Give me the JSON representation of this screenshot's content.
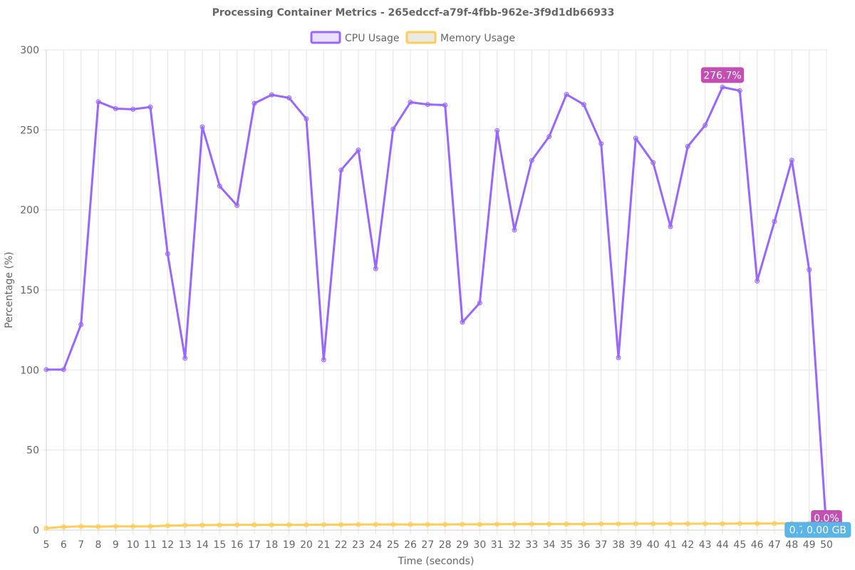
{
  "chart_data": {
    "type": "line",
    "title": "Processing Container Metrics - 265edccf-a79f-4fbb-962e-3f9d1db66933",
    "xlabel": "Time (seconds)",
    "ylabel": "Percentage (%)",
    "ylim": [
      0,
      300
    ],
    "y_ticks": [
      0,
      50,
      100,
      150,
      200,
      250,
      300
    ],
    "x": [
      5,
      6,
      7,
      8,
      9,
      10,
      11,
      12,
      13,
      14,
      15,
      16,
      17,
      18,
      19,
      20,
      21,
      22,
      23,
      24,
      25,
      26,
      27,
      28,
      29,
      30,
      31,
      32,
      33,
      34,
      35,
      36,
      37,
      38,
      39,
      40,
      41,
      42,
      43,
      44,
      45,
      46,
      47,
      48,
      49,
      50
    ],
    "grid": true,
    "legend_position": "top",
    "series": [
      {
        "name": "CPU Usage",
        "color": "#9966ff",
        "values": [
          100.3,
          100.3,
          128.4,
          267.6,
          263.3,
          262.9,
          264.3,
          172.6,
          107.4,
          251.9,
          214.9,
          202.8,
          266.6,
          271.9,
          270.0,
          256.9,
          106.4,
          224.9,
          237.4,
          163.3,
          250.4,
          267.3,
          265.9,
          265.5,
          129.9,
          141.9,
          249.6,
          187.5,
          230.9,
          245.8,
          272.2,
          265.9,
          241.4,
          107.7,
          244.8,
          229.6,
          189.6,
          239.7,
          252.9,
          276.7,
          274.5,
          155.6,
          192.8,
          231.0,
          162.7,
          0.0
        ]
      },
      {
        "name": "Memory Usage",
        "color": "#ffcd56",
        "values": [
          1.2,
          2.0,
          2.3,
          2.2,
          2.3,
          2.3,
          2.3,
          2.8,
          3.0,
          3.1,
          3.2,
          3.3,
          3.3,
          3.3,
          3.3,
          3.3,
          3.4,
          3.4,
          3.5,
          3.5,
          3.5,
          3.5,
          3.5,
          3.5,
          3.6,
          3.6,
          3.7,
          3.8,
          3.8,
          3.8,
          3.8,
          3.8,
          3.9,
          3.9,
          4.0,
          4.0,
          4.0,
          4.0,
          4.0,
          4.0,
          4.1,
          4.1,
          4.1,
          4.2,
          4.2,
          4.2
        ]
      }
    ],
    "annotations": [
      {
        "text": "276.7%",
        "series": 0,
        "x": 44,
        "color": "#c14fb4",
        "place": "above"
      },
      {
        "text": "0.0%",
        "series": 0,
        "x": 50,
        "color": "#c14fb4",
        "place": "above"
      },
      {
        "text": "0.73 GB",
        "series": 1,
        "x": 49,
        "color": "#5ab4e8",
        "place": "below"
      },
      {
        "text": "0.00 GB",
        "series": 1,
        "x": 50,
        "color": "#5ab4e8",
        "place": "below"
      }
    ]
  }
}
